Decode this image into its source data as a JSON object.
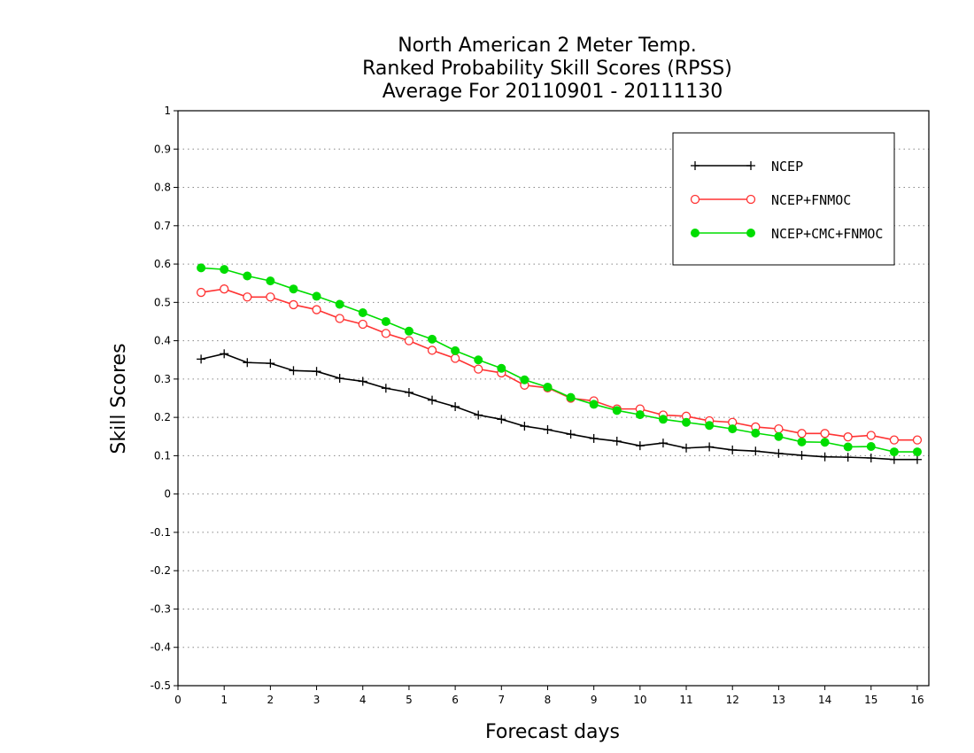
{
  "chart_data": {
    "type": "line",
    "title": [
      "North American 2 Meter Temp.",
      "Ranked Probability Skill Scores (RPSS)",
      "Average For 20110901 - 20111130"
    ],
    "xlabel": "Forecast days",
    "ylabel": "Skill Scores",
    "xlim": [
      0,
      16.25
    ],
    "ylim": [
      -0.5,
      1
    ],
    "xticks": [
      "0",
      "1",
      "2",
      "3",
      "4",
      "5",
      "6",
      "7",
      "8",
      "9",
      "10",
      "11",
      "12",
      "13",
      "14",
      "15",
      "16"
    ],
    "yticks": [
      "1",
      "0.9",
      "0.8",
      "0.7",
      "0.6",
      "0.5",
      "0.4",
      "0.3",
      "0.2",
      "0.1",
      "0",
      "-0.1",
      "-0.2",
      "-0.3",
      "-0.4",
      "-0.5"
    ],
    "grid": true,
    "legend_position": "top-right",
    "x": [
      0.5,
      1,
      1.5,
      2,
      2.5,
      3,
      3.5,
      4,
      4.5,
      5,
      5.5,
      6,
      6.5,
      7,
      7.5,
      8,
      8.5,
      9,
      9.5,
      10,
      10.5,
      11,
      11.5,
      12,
      12.5,
      13,
      13.5,
      14,
      14.5,
      15,
      15.5,
      16
    ],
    "series": [
      {
        "name": "NCEP",
        "color": "#000000",
        "marker": "plus",
        "values": [
          0.352,
          0.366,
          0.343,
          0.341,
          0.322,
          0.32,
          0.302,
          0.294,
          0.276,
          0.265,
          0.245,
          0.228,
          0.206,
          0.195,
          0.177,
          0.168,
          0.156,
          0.145,
          0.138,
          0.126,
          0.133,
          0.12,
          0.123,
          0.115,
          0.112,
          0.106,
          0.101,
          0.097,
          0.096,
          0.094,
          0.09,
          0.09
        ]
      },
      {
        "name": "NCEP+FNMOC",
        "color": "#ff3333",
        "marker": "open-circle",
        "values": [
          0.526,
          0.535,
          0.514,
          0.514,
          0.494,
          0.481,
          0.458,
          0.443,
          0.419,
          0.4,
          0.375,
          0.354,
          0.326,
          0.316,
          0.284,
          0.277,
          0.25,
          0.243,
          0.222,
          0.222,
          0.206,
          0.203,
          0.191,
          0.187,
          0.175,
          0.17,
          0.158,
          0.158,
          0.149,
          0.153,
          0.141,
          0.141
        ]
      },
      {
        "name": "NCEP+CMC+FNMOC",
        "color": "#00dd00",
        "marker": "filled-circle",
        "values": [
          0.59,
          0.586,
          0.569,
          0.556,
          0.535,
          0.516,
          0.495,
          0.473,
          0.45,
          0.425,
          0.404,
          0.374,
          0.35,
          0.328,
          0.298,
          0.279,
          0.252,
          0.234,
          0.218,
          0.207,
          0.195,
          0.187,
          0.179,
          0.17,
          0.159,
          0.15,
          0.136,
          0.135,
          0.123,
          0.124,
          0.11,
          0.11
        ]
      }
    ]
  }
}
